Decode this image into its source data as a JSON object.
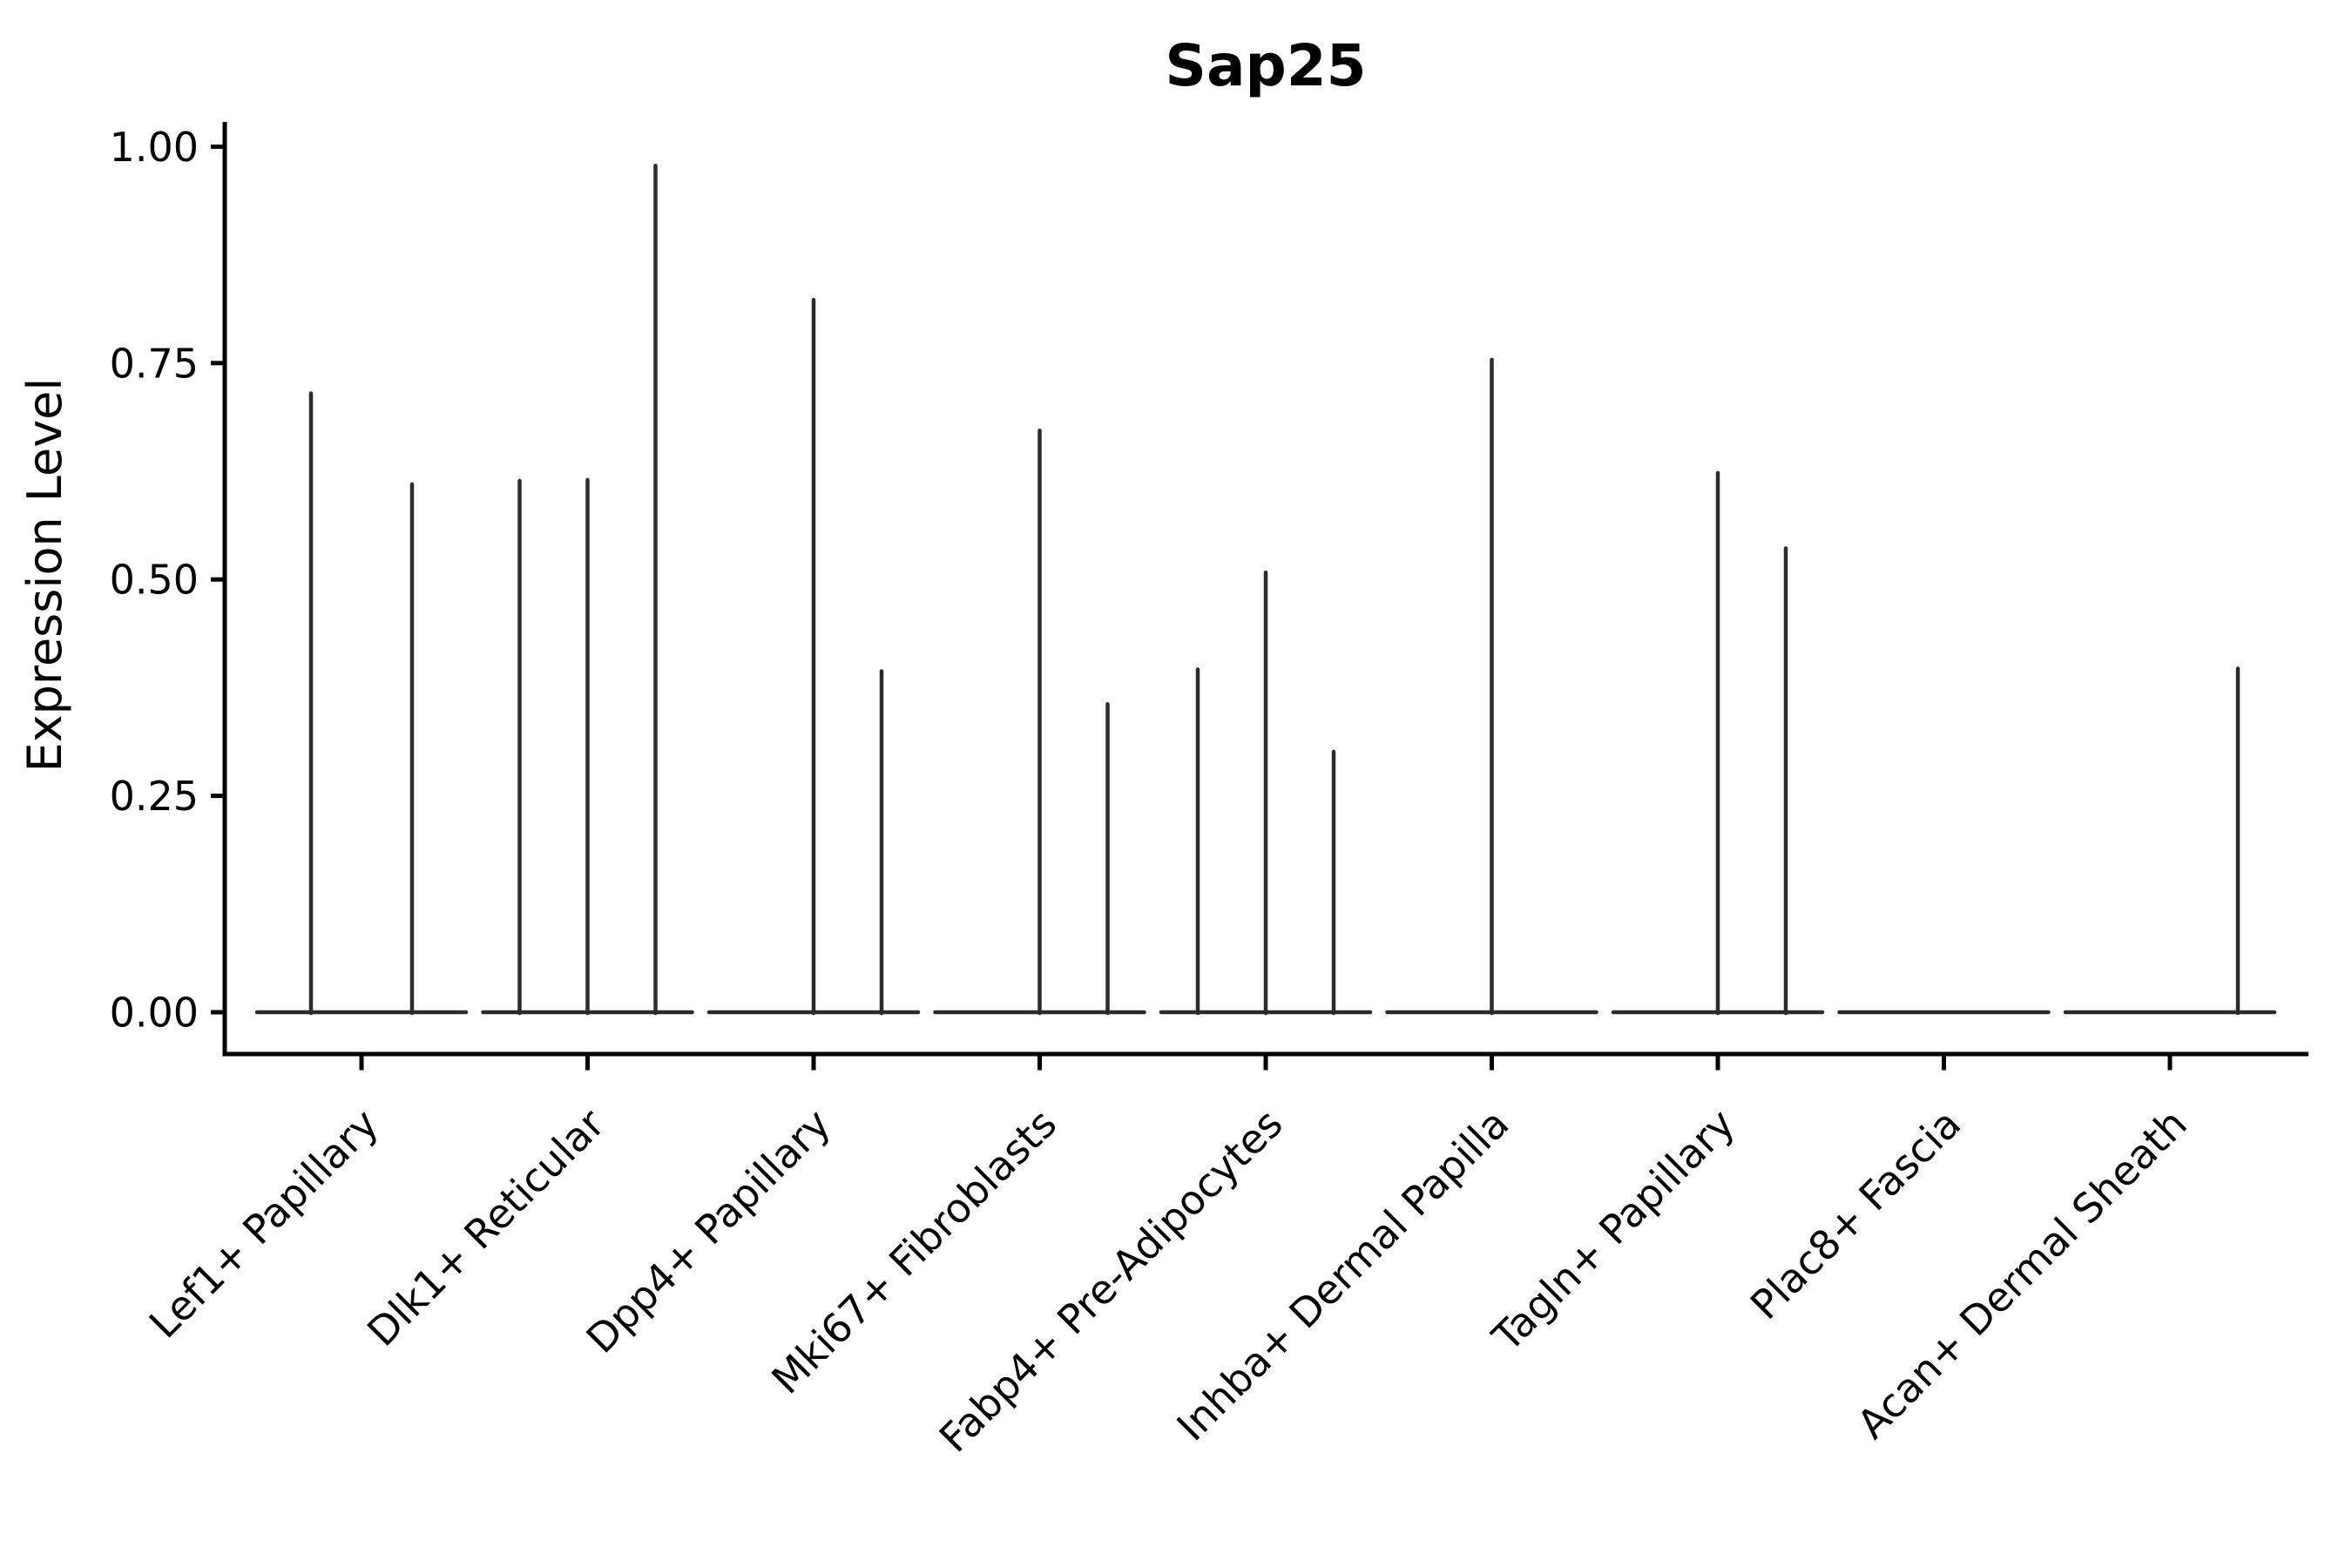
{
  "figure": {
    "title": "Sap25",
    "background_color": "#ffffff",
    "axis_color": "#000000",
    "violin_color": "#2b2b2b"
  },
  "chart_data": {
    "type": "violin",
    "title": "Sap25",
    "xlabel": "",
    "ylabel": "Expression Level",
    "ylim": [
      -0.048,
      1.028
    ],
    "yticks": [
      0.0,
      0.25,
      0.5,
      0.75,
      1.0
    ],
    "ytick_labels": [
      "0.00",
      "0.25",
      "0.50",
      "0.75",
      "1.00"
    ],
    "grid": false,
    "legend": "none",
    "description": "Violin plot of Sap25 expression per fibroblast cluster; violins collapse to a flat base at 0 with thin vertical density spikes (per dodged sub-group) reaching the maximum expressing cell.",
    "categories": [
      {
        "label": "Lef1+ Papillary",
        "spikes": [
          {
            "offset": -58,
            "value": 0.715
          },
          {
            "offset": 58,
            "value": 0.61
          }
        ]
      },
      {
        "label": "Dlk1+ Reticular",
        "spikes": [
          {
            "offset": -78,
            "value": 0.614
          },
          {
            "offset": 0,
            "value": 0.615
          },
          {
            "offset": 78,
            "value": 0.978
          }
        ]
      },
      {
        "label": "Dpp4+ Papillary",
        "spikes": [
          {
            "offset": 0,
            "value": 0.823
          },
          {
            "offset": 78,
            "value": 0.394
          }
        ]
      },
      {
        "label": "Mki67+ Fibroblasts",
        "spikes": [
          {
            "offset": 0,
            "value": 0.672
          },
          {
            "offset": 78,
            "value": 0.356
          }
        ]
      },
      {
        "label": "Fabp4+ Pre-Adipocytes",
        "spikes": [
          {
            "offset": -78,
            "value": 0.396
          },
          {
            "offset": 0,
            "value": 0.508
          },
          {
            "offset": 78,
            "value": 0.301
          }
        ]
      },
      {
        "label": "Inhba+ Dermal Papilla",
        "spikes": [
          {
            "offset": 0,
            "value": 0.754
          }
        ]
      },
      {
        "label": "Tagln+ Papillary",
        "spikes": [
          {
            "offset": 0,
            "value": 0.623
          },
          {
            "offset": 78,
            "value": 0.536
          }
        ]
      },
      {
        "label": "Plac8+ Fascia",
        "spikes": []
      },
      {
        "label": "Acan+ Dermal Sheath",
        "spikes": [
          {
            "offset": 78,
            "value": 0.397
          }
        ]
      }
    ]
  }
}
